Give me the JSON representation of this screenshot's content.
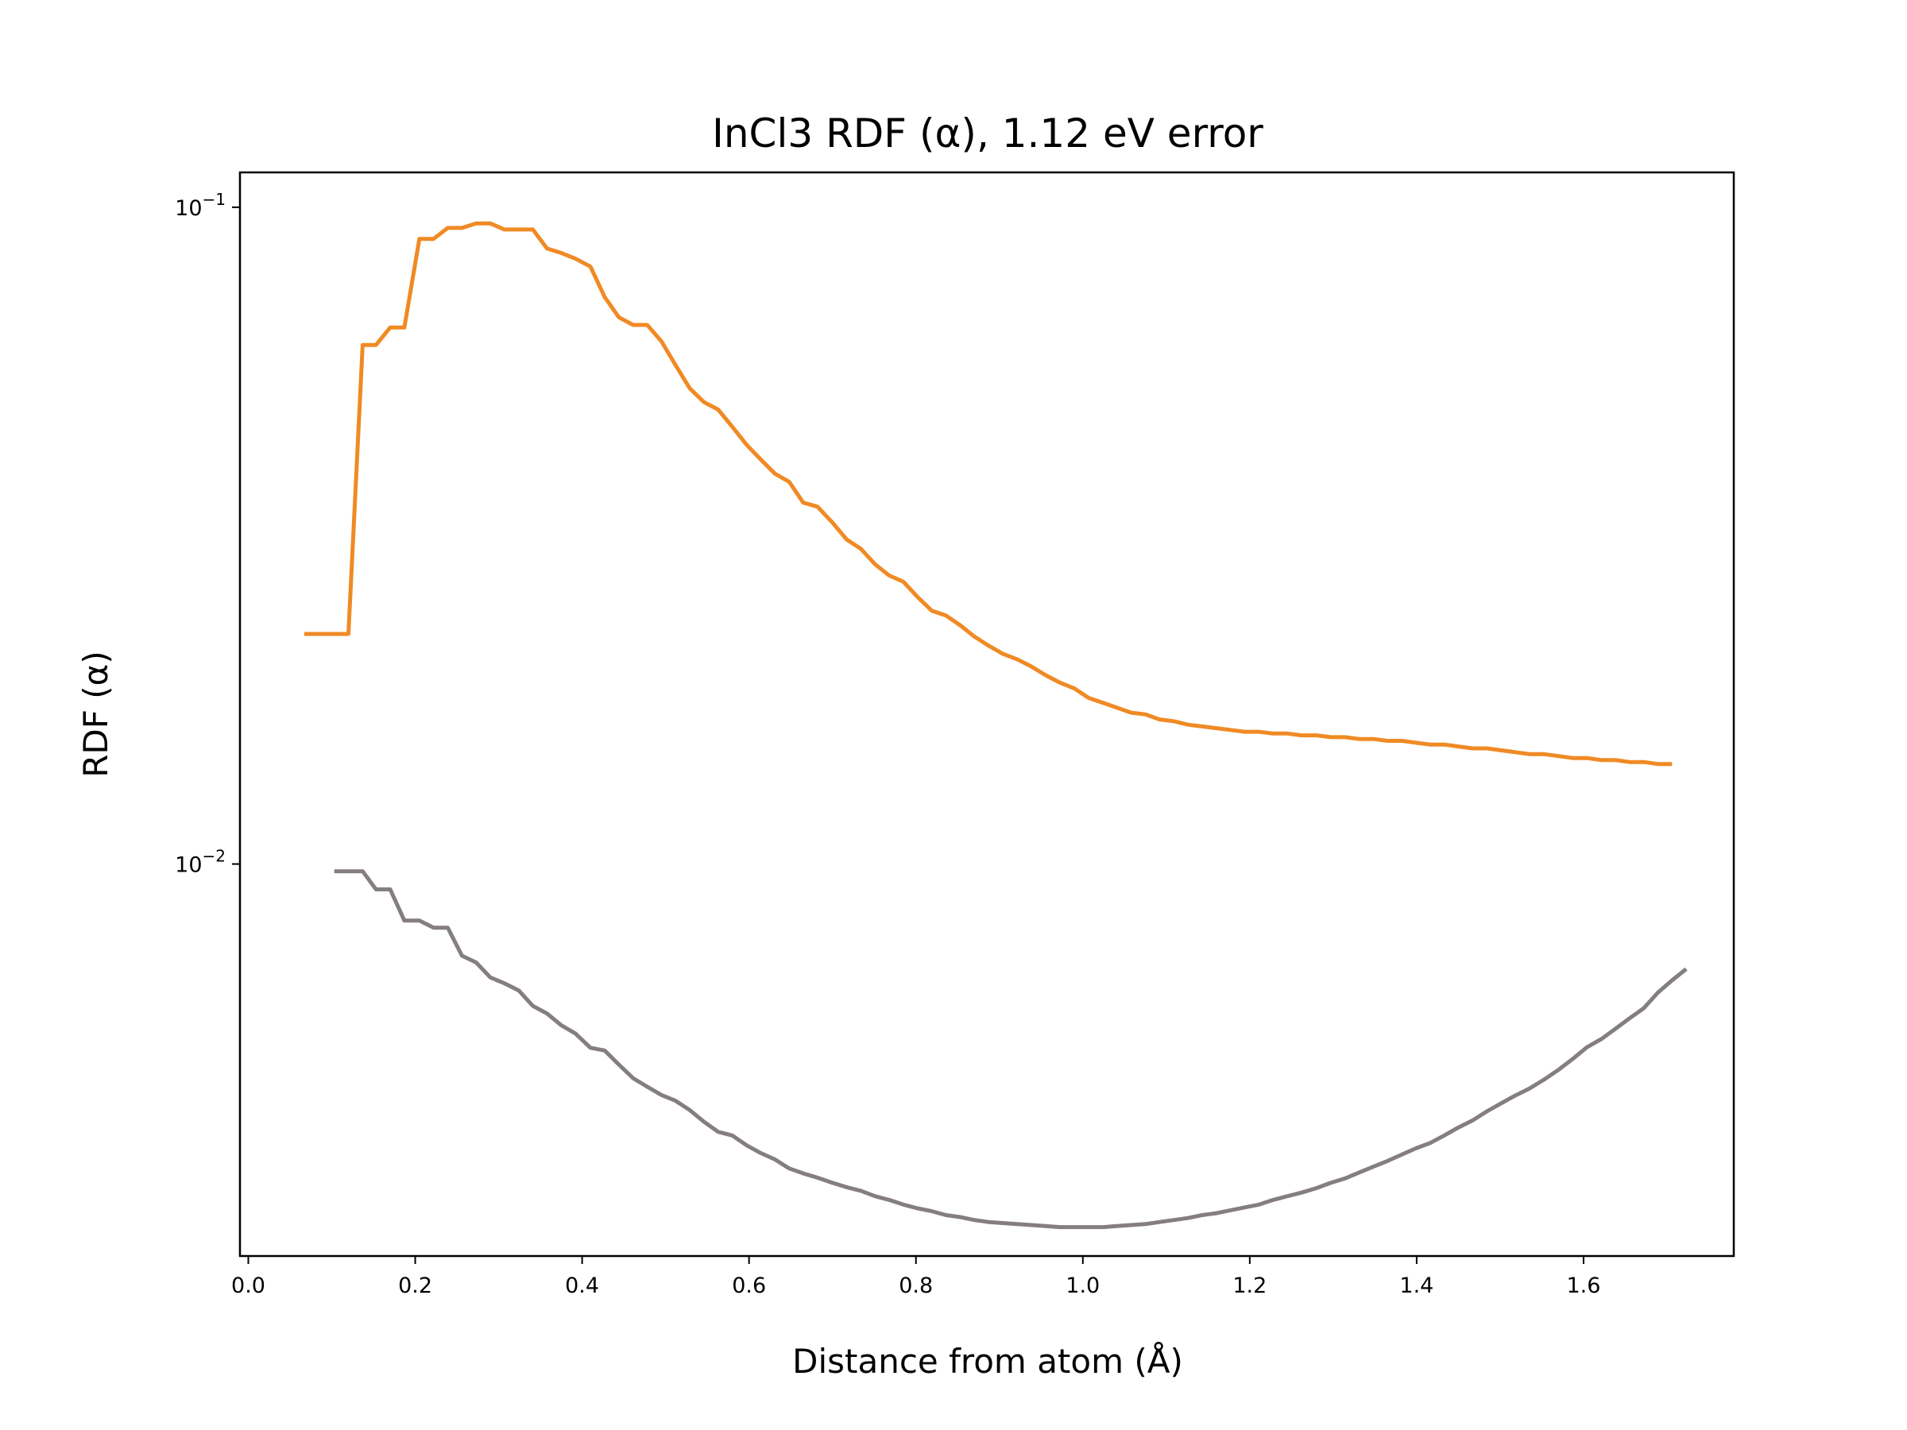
{
  "chart_data": {
    "type": "line",
    "title": "InCl3 RDF (α), 1.12 eV error",
    "xlabel": "Distance from atom (Å)",
    "ylabel": "RDF (α)",
    "xlim": [
      -0.01,
      1.78
    ],
    "ylim": [
      0.00253,
      0.113
    ],
    "yscale": "log",
    "grid": false,
    "x_ticks": [
      {
        "value": 0.0,
        "label": "0.0"
      },
      {
        "value": 0.2,
        "label": "0.2"
      },
      {
        "value": 0.4,
        "label": "0.4"
      },
      {
        "value": 0.6,
        "label": "0.6"
      },
      {
        "value": 0.8,
        "label": "0.8"
      },
      {
        "value": 1.0,
        "label": "1.0"
      },
      {
        "value": 1.2,
        "label": "1.2"
      },
      {
        "value": 1.4,
        "label": "1.4"
      },
      {
        "value": 1.6,
        "label": "1.6"
      }
    ],
    "y_ticks": [
      {
        "value": 0.1,
        "base": "10",
        "exp": "−1"
      },
      {
        "value": 0.01,
        "base": "10",
        "exp": "−2"
      }
    ],
    "series": [
      {
        "color": "#f08a24",
        "points": [
          [
            0.067,
            0.0224
          ],
          [
            0.12,
            0.0224
          ],
          [
            0.137,
            0.0617
          ],
          [
            0.153,
            0.0617
          ],
          [
            0.17,
            0.0656
          ],
          [
            0.187,
            0.0656
          ],
          [
            0.205,
            0.0895
          ],
          [
            0.222,
            0.0895
          ],
          [
            0.239,
            0.093
          ],
          [
            0.256,
            0.093
          ],
          [
            0.273,
            0.0945
          ],
          [
            0.29,
            0.0945
          ],
          [
            0.307,
            0.0925
          ],
          [
            0.341,
            0.0925
          ],
          [
            0.358,
            0.0865
          ],
          [
            0.375,
            0.0852
          ],
          [
            0.392,
            0.0835
          ],
          [
            0.41,
            0.0812
          ],
          [
            0.427,
            0.073
          ],
          [
            0.444,
            0.068
          ],
          [
            0.461,
            0.0662
          ],
          [
            0.478,
            0.0662
          ],
          [
            0.495,
            0.0625
          ],
          [
            0.512,
            0.0575
          ],
          [
            0.529,
            0.053
          ],
          [
            0.546,
            0.0505
          ],
          [
            0.563,
            0.0492
          ],
          [
            0.58,
            0.0463
          ],
          [
            0.597,
            0.0435
          ],
          [
            0.614,
            0.0413
          ],
          [
            0.631,
            0.0393
          ],
          [
            0.648,
            0.0382
          ],
          [
            0.665,
            0.0355
          ],
          [
            0.682,
            0.035
          ],
          [
            0.7,
            0.0331
          ],
          [
            0.717,
            0.0312
          ],
          [
            0.734,
            0.0302
          ],
          [
            0.751,
            0.0286
          ],
          [
            0.768,
            0.0275
          ],
          [
            0.785,
            0.0269
          ],
          [
            0.802,
            0.0255
          ],
          [
            0.819,
            0.0243
          ],
          [
            0.836,
            0.0239
          ],
          [
            0.853,
            0.0231
          ],
          [
            0.87,
            0.0222
          ],
          [
            0.887,
            0.0215
          ],
          [
            0.904,
            0.0209
          ],
          [
            0.921,
            0.0205
          ],
          [
            0.938,
            0.02
          ],
          [
            0.955,
            0.0194
          ],
          [
            0.972,
            0.0189
          ],
          [
            0.99,
            0.0185
          ],
          [
            1.007,
            0.0179
          ],
          [
            1.024,
            0.0176
          ],
          [
            1.041,
            0.0173
          ],
          [
            1.058,
            0.017
          ],
          [
            1.075,
            0.0169
          ],
          [
            1.092,
            0.0166
          ],
          [
            1.109,
            0.0165
          ],
          [
            1.126,
            0.0163
          ],
          [
            1.143,
            0.0162
          ],
          [
            1.16,
            0.0161
          ],
          [
            1.177,
            0.016
          ],
          [
            1.194,
            0.0159
          ],
          [
            1.211,
            0.0159
          ],
          [
            1.228,
            0.0158
          ],
          [
            1.245,
            0.0158
          ],
          [
            1.262,
            0.0157
          ],
          [
            1.28,
            0.0157
          ],
          [
            1.297,
            0.0156
          ],
          [
            1.314,
            0.0156
          ],
          [
            1.331,
            0.0155
          ],
          [
            1.348,
            0.0155
          ],
          [
            1.365,
            0.0154
          ],
          [
            1.382,
            0.0154
          ],
          [
            1.399,
            0.0153
          ],
          [
            1.416,
            0.0152
          ],
          [
            1.433,
            0.0152
          ],
          [
            1.45,
            0.0151
          ],
          [
            1.467,
            0.015
          ],
          [
            1.484,
            0.015
          ],
          [
            1.501,
            0.0149
          ],
          [
            1.518,
            0.0148
          ],
          [
            1.535,
            0.0147
          ],
          [
            1.552,
            0.0147
          ],
          [
            1.57,
            0.0146
          ],
          [
            1.587,
            0.0145
          ],
          [
            1.604,
            0.0145
          ],
          [
            1.621,
            0.0144
          ],
          [
            1.638,
            0.0144
          ],
          [
            1.655,
            0.0143
          ],
          [
            1.672,
            0.0143
          ],
          [
            1.689,
            0.0142
          ],
          [
            1.706,
            0.0142
          ]
        ]
      },
      {
        "color": "#857e7e",
        "points": [
          [
            0.103,
            0.00975
          ],
          [
            0.137,
            0.00975
          ],
          [
            0.153,
            0.00915
          ],
          [
            0.17,
            0.00915
          ],
          [
            0.187,
            0.0082
          ],
          [
            0.205,
            0.0082
          ],
          [
            0.222,
            0.008
          ],
          [
            0.239,
            0.008
          ],
          [
            0.256,
            0.00725
          ],
          [
            0.273,
            0.00708
          ],
          [
            0.29,
            0.00672
          ],
          [
            0.307,
            0.00658
          ],
          [
            0.324,
            0.00642
          ],
          [
            0.341,
            0.00608
          ],
          [
            0.358,
            0.00592
          ],
          [
            0.375,
            0.00568
          ],
          [
            0.392,
            0.00552
          ],
          [
            0.41,
            0.00525
          ],
          [
            0.427,
            0.0052
          ],
          [
            0.444,
            0.00495
          ],
          [
            0.461,
            0.00472
          ],
          [
            0.478,
            0.00458
          ],
          [
            0.495,
            0.00445
          ],
          [
            0.512,
            0.00436
          ],
          [
            0.529,
            0.00422
          ],
          [
            0.546,
            0.00405
          ],
          [
            0.563,
            0.00391
          ],
          [
            0.58,
            0.00386
          ],
          [
            0.597,
            0.00373
          ],
          [
            0.614,
            0.00363
          ],
          [
            0.631,
            0.00355
          ],
          [
            0.648,
            0.00344
          ],
          [
            0.665,
            0.00338
          ],
          [
            0.682,
            0.00333
          ],
          [
            0.7,
            0.00327
          ],
          [
            0.717,
            0.00322
          ],
          [
            0.734,
            0.00318
          ],
          [
            0.751,
            0.00312
          ],
          [
            0.768,
            0.00308
          ],
          [
            0.785,
            0.00303
          ],
          [
            0.802,
            0.00299
          ],
          [
            0.819,
            0.00296
          ],
          [
            0.836,
            0.00292
          ],
          [
            0.853,
            0.0029
          ],
          [
            0.87,
            0.00287
          ],
          [
            0.887,
            0.00285
          ],
          [
            0.904,
            0.00284
          ],
          [
            0.921,
            0.00283
          ],
          [
            0.938,
            0.00282
          ],
          [
            0.955,
            0.00281
          ],
          [
            0.972,
            0.0028
          ],
          [
            0.99,
            0.0028
          ],
          [
            1.007,
            0.0028
          ],
          [
            1.024,
            0.0028
          ],
          [
            1.041,
            0.00281
          ],
          [
            1.058,
            0.00282
          ],
          [
            1.075,
            0.00283
          ],
          [
            1.092,
            0.00285
          ],
          [
            1.109,
            0.00287
          ],
          [
            1.126,
            0.00289
          ],
          [
            1.143,
            0.00292
          ],
          [
            1.16,
            0.00294
          ],
          [
            1.177,
            0.00297
          ],
          [
            1.194,
            0.003
          ],
          [
            1.211,
            0.00303
          ],
          [
            1.228,
            0.00308
          ],
          [
            1.245,
            0.00312
          ],
          [
            1.262,
            0.00316
          ],
          [
            1.28,
            0.00321
          ],
          [
            1.297,
            0.00327
          ],
          [
            1.314,
            0.00332
          ],
          [
            1.331,
            0.00339
          ],
          [
            1.348,
            0.00346
          ],
          [
            1.365,
            0.00353
          ],
          [
            1.382,
            0.00361
          ],
          [
            1.399,
            0.00369
          ],
          [
            1.416,
            0.00376
          ],
          [
            1.433,
            0.00386
          ],
          [
            1.45,
            0.00397
          ],
          [
            1.467,
            0.00407
          ],
          [
            1.484,
            0.0042
          ],
          [
            1.501,
            0.00432
          ],
          [
            1.518,
            0.00444
          ],
          [
            1.535,
            0.00455
          ],
          [
            1.552,
            0.00469
          ],
          [
            1.57,
            0.00486
          ],
          [
            1.587,
            0.00505
          ],
          [
            1.604,
            0.00526
          ],
          [
            1.621,
            0.00541
          ],
          [
            1.638,
            0.00561
          ],
          [
            1.655,
            0.00582
          ],
          [
            1.672,
            0.00603
          ],
          [
            1.689,
            0.00637
          ],
          [
            1.706,
            0.00665
          ],
          [
            1.723,
            0.00692
          ]
        ]
      }
    ]
  }
}
